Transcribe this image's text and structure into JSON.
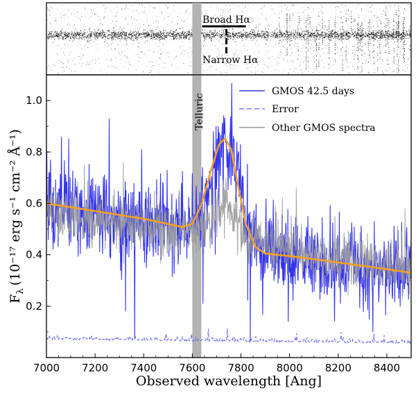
{
  "chart_data": {
    "type": "line",
    "title": "",
    "xlabel": "Observed wavelength [Ang]",
    "ylabel_main": "F",
    "ylabel_sub": "λ",
    "ylabel_units": "(10⁻¹⁷ erg s⁻¹ cm⁻² Å⁻¹)",
    "xlim": [
      7000,
      8500
    ],
    "ylim": [
      0.0,
      1.1
    ],
    "x_ticks": [
      7000,
      7200,
      7400,
      7600,
      7800,
      8000,
      8200,
      8400
    ],
    "x_tick_labels": [
      "7000",
      "7200",
      "7400",
      "7600",
      "7800",
      "8000",
      "8200",
      "8400"
    ],
    "y_ticks": [
      0.2,
      0.4,
      0.6,
      0.8,
      1.0
    ],
    "y_tick_labels": [
      "0.2",
      "0.4",
      "0.6",
      "0.8",
      "1.0"
    ],
    "telluric_band": {
      "label": "Telluric",
      "x_start": 7600,
      "x_end": 7637
    },
    "legend": {
      "position": "top-right",
      "entries": [
        {
          "label": "GMOS 42.5 days",
          "color": "#3333ee",
          "style": "solid"
        },
        {
          "label": "Error",
          "color": "#7777ee",
          "style": "dashed"
        },
        {
          "label": "Other GMOS spectra",
          "color": "#999999",
          "style": "solid"
        }
      ]
    },
    "series": [
      {
        "name": "GMOS 42.5 days",
        "kind": "noisy-spectrum",
        "color": "#3333ee",
        "continuum_x": [
          7000,
          7500,
          7580,
          7650,
          7700,
          7735,
          7770,
          7830,
          7900,
          8000,
          8200,
          8500
        ],
        "continuum_y": [
          0.6,
          0.52,
          0.5,
          0.6,
          0.8,
          0.85,
          0.77,
          0.52,
          0.42,
          0.4,
          0.37,
          0.33
        ],
        "noise_sigma": 0.08
      },
      {
        "name": "Other GMOS spectra",
        "kind": "noisy-spectrum",
        "color": "#999999",
        "continuum_x": [
          7000,
          7400,
          7600,
          7700,
          7735,
          7800,
          7900,
          8200,
          8500
        ],
        "continuum_y": [
          0.57,
          0.51,
          0.48,
          0.55,
          0.6,
          0.5,
          0.44,
          0.38,
          0.34
        ],
        "noise_sigma": 0.05
      },
      {
        "name": "Error",
        "kind": "noisy-spectrum",
        "color": "#7777ee",
        "continuum_x": [
          7000,
          7500,
          8000,
          8500
        ],
        "continuum_y": [
          0.07,
          0.065,
          0.06,
          0.055
        ],
        "noise_sigma": 0.006
      },
      {
        "name": "Fit",
        "kind": "model",
        "color": "#f5a020",
        "x": [
          7000,
          7100,
          7200,
          7300,
          7400,
          7500,
          7560,
          7600,
          7640,
          7680,
          7710,
          7735,
          7760,
          7790,
          7820,
          7860,
          7900,
          8000,
          8100,
          8200,
          8300,
          8400,
          8500
        ],
        "y": [
          0.6,
          0.585,
          0.57,
          0.555,
          0.54,
          0.52,
          0.508,
          0.52,
          0.6,
          0.74,
          0.83,
          0.853,
          0.81,
          0.66,
          0.52,
          0.43,
          0.405,
          0.395,
          0.383,
          0.37,
          0.357,
          0.344,
          0.33
        ]
      }
    ],
    "top_panel": {
      "type": "2d-spectrum",
      "annotations": [
        {
          "label": "Broad Hα",
          "marker": "solid-bar",
          "x_start": 7640,
          "x_end": 7820
        },
        {
          "label": "Narrow Hα",
          "marker": "dashed-vertical",
          "x": 7740
        }
      ]
    }
  }
}
